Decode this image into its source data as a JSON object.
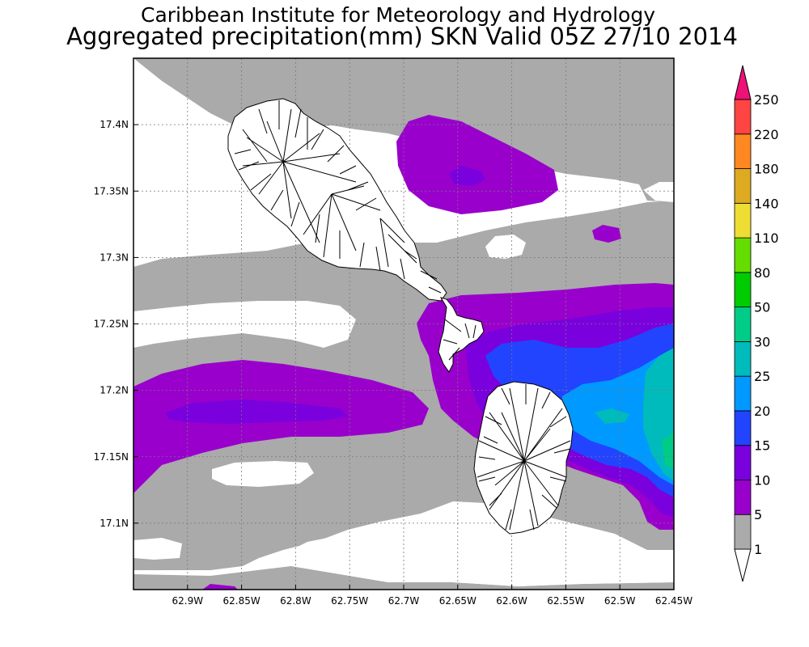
{
  "header": {
    "title": "Caribbean Institute for Meteorology and Hydrology",
    "subtitle": "Aggregated precipitation(mm) SKN Valid 05Z 27/10 2014"
  },
  "map": {
    "lon_range": [
      -62.95,
      -62.45
    ],
    "lat_range": [
      17.05,
      17.45
    ],
    "lon_ticks": [
      {
        "value": -62.9,
        "label": "62.9W"
      },
      {
        "value": -62.85,
        "label": "62.85W"
      },
      {
        "value": -62.8,
        "label": "62.8W"
      },
      {
        "value": -62.75,
        "label": "62.75W"
      },
      {
        "value": -62.7,
        "label": "62.7W"
      },
      {
        "value": -62.65,
        "label": "62.65W"
      },
      {
        "value": -62.6,
        "label": "62.6W"
      },
      {
        "value": -62.55,
        "label": "62.55W"
      },
      {
        "value": -62.5,
        "label": "62.5W"
      },
      {
        "value": -62.45,
        "label": "62.45W"
      }
    ],
    "lat_ticks": [
      {
        "value": 17.4,
        "label": "17.4N"
      },
      {
        "value": 17.35,
        "label": "17.35N"
      },
      {
        "value": 17.3,
        "label": "17.3N"
      },
      {
        "value": 17.25,
        "label": "17.25N"
      },
      {
        "value": 17.2,
        "label": "17.2N"
      },
      {
        "value": 17.15,
        "label": "17.15N"
      },
      {
        "value": 17.1,
        "label": "17.1N"
      }
    ],
    "grid": true,
    "landmasses": [
      "St Kitts",
      "Nevis"
    ]
  },
  "colorbar": {
    "levels": [
      {
        "label": "1",
        "color": "#ffffff"
      },
      {
        "label": "5",
        "color": "#aaaaaa"
      },
      {
        "label": "10",
        "color": "#9900cc"
      },
      {
        "label": "15",
        "color": "#7a00dd"
      },
      {
        "label": "20",
        "color": "#2244ff"
      },
      {
        "label": "25",
        "color": "#0099ff"
      },
      {
        "label": "30",
        "color": "#00bbbb"
      },
      {
        "label": "50",
        "color": "#00cc88"
      },
      {
        "label": "80",
        "color": "#00cc00"
      },
      {
        "label": "110",
        "color": "#66dd00"
      },
      {
        "label": "140",
        "color": "#eedd33"
      },
      {
        "label": "180",
        "color": "#ddaa22"
      },
      {
        "label": "220",
        "color": "#ff8822"
      },
      {
        "label": "250",
        "color": "#ff4444"
      }
    ],
    "top_color": "#ee1177"
  }
}
